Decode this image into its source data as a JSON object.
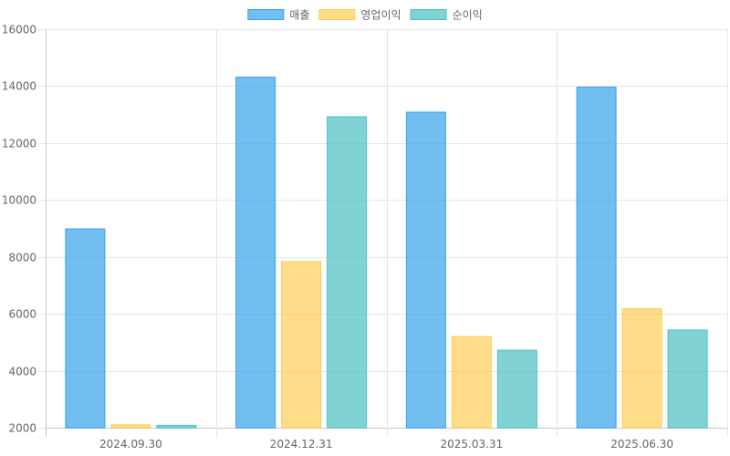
{
  "chart_data": {
    "type": "bar",
    "categories": [
      "2024.09.30",
      "2024.12.31",
      "2025.03.31",
      "2025.06.30"
    ],
    "series": [
      {
        "name": "매출",
        "values": [
          9000,
          14330,
          13100,
          13980
        ],
        "fill": "rgba(54,162,235,0.7)",
        "stroke": "#36a2eb"
      },
      {
        "name": "영업이익",
        "values": [
          2120,
          7850,
          5220,
          6200
        ],
        "fill": "rgba(255,205,86,0.7)",
        "stroke": "#ffcd56"
      },
      {
        "name": "순이익",
        "values": [
          2100,
          12940,
          4740,
          5450
        ],
        "fill": "rgba(75,192,192,0.7)",
        "stroke": "#4bc0c0"
      }
    ],
    "ylim": [
      2000,
      16000
    ],
    "yticks": [
      2000,
      4000,
      6000,
      8000,
      10000,
      12000,
      14000,
      16000
    ],
    "grid": true,
    "legend": "top-center"
  }
}
